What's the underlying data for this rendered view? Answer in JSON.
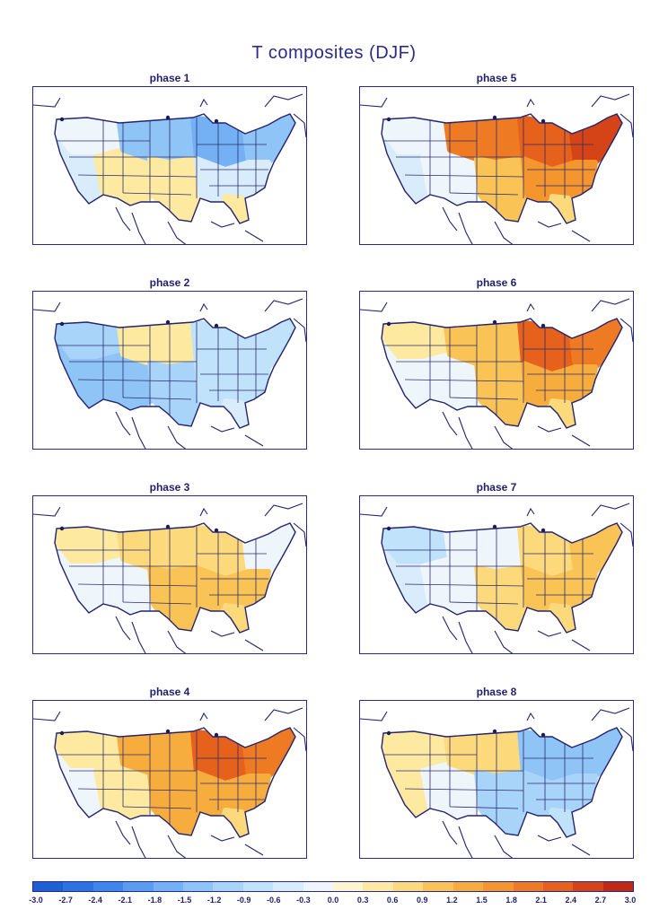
{
  "title": "T composites (DJF)",
  "colorbar": {
    "ticks": [
      "-3.0",
      "-2.7",
      "-2.4",
      "-2.1",
      "-1.8",
      "-1.5",
      "-1.2",
      "-0.9",
      "-0.6",
      "-0.3",
      "0.0",
      "0.3",
      "0.6",
      "0.9",
      "1.2",
      "1.5",
      "1.8",
      "2.1",
      "2.4",
      "2.7",
      "3.0"
    ],
    "colors": [
      "#1e5fd4",
      "#2c72e0",
      "#3f86ea",
      "#5a9cf0",
      "#74b1f4",
      "#8fc4f7",
      "#a8d4f9",
      "#c1e2fb",
      "#d8ecfc",
      "#eef6fc",
      "#fdf6cc",
      "#fde9a0",
      "#fcd97a",
      "#f9c455",
      "#f7ad3d",
      "#f4952e",
      "#ee7b24",
      "#e5611c",
      "#d54416",
      "#c02a12"
    ]
  },
  "panels": [
    {
      "label": "phase 1",
      "anomalies": {
        "west": -0.6,
        "northwest": -0.3,
        "southwest": 0.3,
        "north_plains": -1.5,
        "south_plains": 0.3,
        "great_lakes": -1.8,
        "northeast": -1.5,
        "southeast": -0.6,
        "florida": 0.3
      }
    },
    {
      "label": "phase 5",
      "anomalies": {
        "west": -0.6,
        "northwest": -0.3,
        "southwest": -0.3,
        "north_plains": 1.8,
        "south_plains": 0.9,
        "great_lakes": 2.1,
        "northeast": 2.4,
        "southeast": 1.5,
        "florida": 0.6
      }
    },
    {
      "label": "phase 2",
      "anomalies": {
        "west": -1.5,
        "northwest": -1.2,
        "southwest": -1.5,
        "north_plains": 0.3,
        "south_plains": -1.2,
        "great_lakes": -0.9,
        "northeast": -0.9,
        "southeast": -0.9,
        "florida": -0.6
      }
    },
    {
      "label": "phase 6",
      "anomalies": {
        "west": -0.3,
        "northwest": 0.3,
        "southwest": -0.3,
        "north_plains": 0.9,
        "south_plains": 0.9,
        "great_lakes": 2.1,
        "northeast": 1.8,
        "southeast": 1.2,
        "florida": 0.6
      }
    },
    {
      "label": "phase 3",
      "anomalies": {
        "west": -0.3,
        "northwest": 0.3,
        "southwest": -0.3,
        "north_plains": 0.6,
        "south_plains": 0.9,
        "great_lakes": 0.6,
        "northeast": -0.3,
        "southeast": 0.9,
        "florida": 0.6
      }
    },
    {
      "label": "phase 7",
      "anomalies": {
        "west": -0.6,
        "northwest": -0.9,
        "southwest": -0.3,
        "north_plains": -0.3,
        "south_plains": 0.6,
        "great_lakes": 0.6,
        "northeast": 0.9,
        "southeast": 0.9,
        "florida": 0.6
      }
    },
    {
      "label": "phase 4",
      "anomalies": {
        "west": -0.3,
        "northwest": 0.3,
        "southwest": 0.3,
        "north_plains": 1.2,
        "south_plains": 1.2,
        "great_lakes": 2.1,
        "northeast": 1.8,
        "southeast": 1.2,
        "florida": 0.6
      }
    },
    {
      "label": "phase 8",
      "anomalies": {
        "west": 0.3,
        "northwest": 0.3,
        "southwest": -0.3,
        "north_plains": 0.6,
        "south_plains": -1.2,
        "great_lakes": -1.5,
        "northeast": -1.5,
        "southeast": -1.2,
        "florida": -0.9
      }
    }
  ]
}
